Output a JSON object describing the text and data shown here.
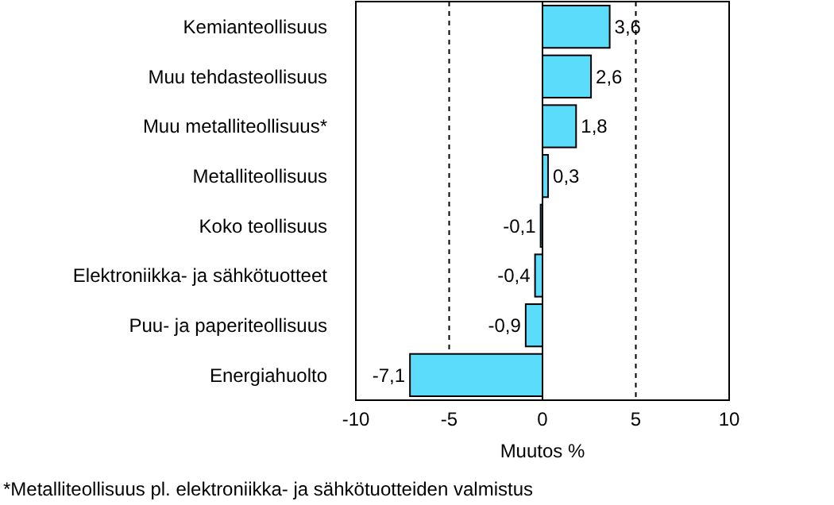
{
  "chart_data": {
    "type": "bar",
    "orientation": "horizontal",
    "categories": [
      "Kemianteollisuus",
      "Muu tehdasteollisuus",
      "Muu metalliteollisuus*",
      "Metalliteollisuus",
      "Koko teollisuus",
      "Elektroniikka- ja sähkötuotteet",
      "Puu- ja paperiteollisuus",
      "Energiahuolto"
    ],
    "values": [
      3.6,
      2.6,
      1.8,
      0.3,
      -0.1,
      -0.4,
      -0.9,
      -7.1
    ],
    "value_labels": [
      "3,6",
      "2,6",
      "1,8",
      "0,3",
      "-0,1",
      "-0,4",
      "-0,9",
      "-7,1"
    ],
    "color": "#5bdcfa",
    "xlim": [
      -10,
      10
    ],
    "xticks": [
      -10,
      -5,
      0,
      5,
      10
    ],
    "xlabel": "Muutos %",
    "grid": "x",
    "annotations": [
      "*Metalliteollisuus pl. elektroniikka- ja sähkötuotteiden valmistus"
    ]
  }
}
